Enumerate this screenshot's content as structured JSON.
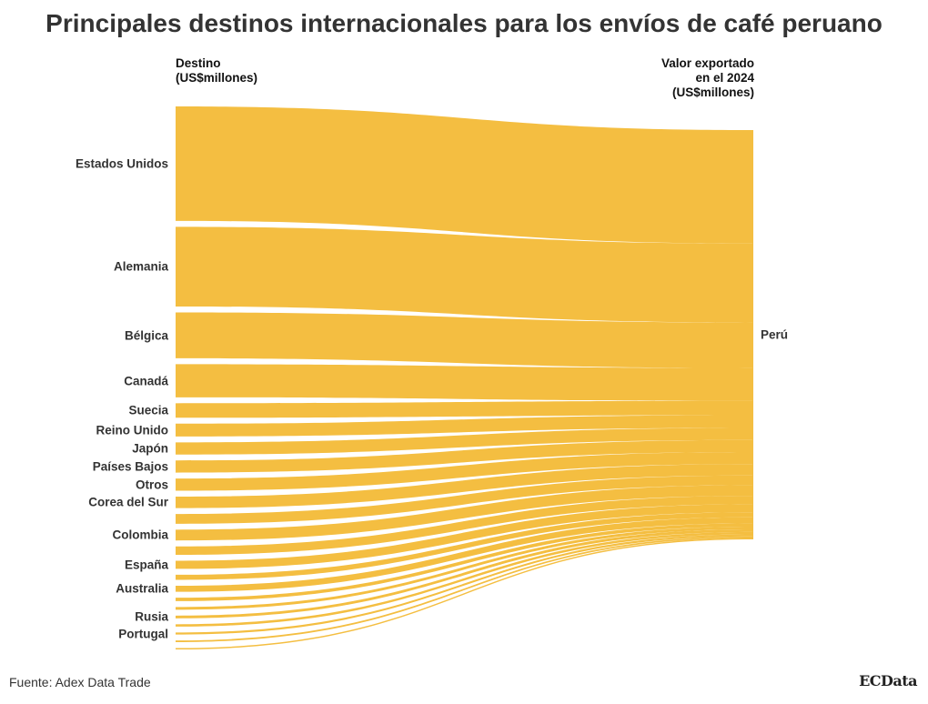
{
  "title": "Principales destinos internacionales para los envíos de café peruano",
  "header_left": "Destino\n(US$millones)",
  "header_right": "Valor exportado\nen el 2024\n(US$millones)",
  "target": "Perú",
  "source": "Fuente: Adex Data Trade",
  "brand": "ECData",
  "colors": {
    "flow": "#F4BE41",
    "text": "#333333"
  },
  "chart_data": {
    "type": "sankey",
    "target": "Perú",
    "nodes": [
      {
        "name": "Estados Unidos",
        "value": 339
      },
      {
        "name": "Alemania",
        "value": 236
      },
      {
        "name": "Bélgica",
        "value": 136
      },
      {
        "name": "Canadá",
        "value": 98
      },
      {
        "name": "Suecia",
        "value": 43
      },
      {
        "name": "Reino Unido",
        "value": 38
      },
      {
        "name": "Japón",
        "value": 36
      },
      {
        "name": "Países Bajos",
        "value": 36
      },
      {
        "name": "Otros",
        "value": 36
      },
      {
        "name": "Corea del Sur",
        "value": 34
      },
      {
        "name": "",
        "value": 29
      },
      {
        "name": "Colombia",
        "value": 32
      },
      {
        "name": "",
        "value": 25
      },
      {
        "name": "España",
        "value": 24
      },
      {
        "name": "",
        "value": 15
      },
      {
        "name": "Australia",
        "value": 18
      },
      {
        "name": "",
        "value": 10
      },
      {
        "name": "",
        "value": 8
      },
      {
        "name": "Rusia",
        "value": 8
      },
      {
        "name": "",
        "value": 7
      },
      {
        "name": "Portugal",
        "value": 6
      },
      {
        "name": "",
        "value": 5
      },
      {
        "name": "",
        "value": 4
      }
    ]
  }
}
